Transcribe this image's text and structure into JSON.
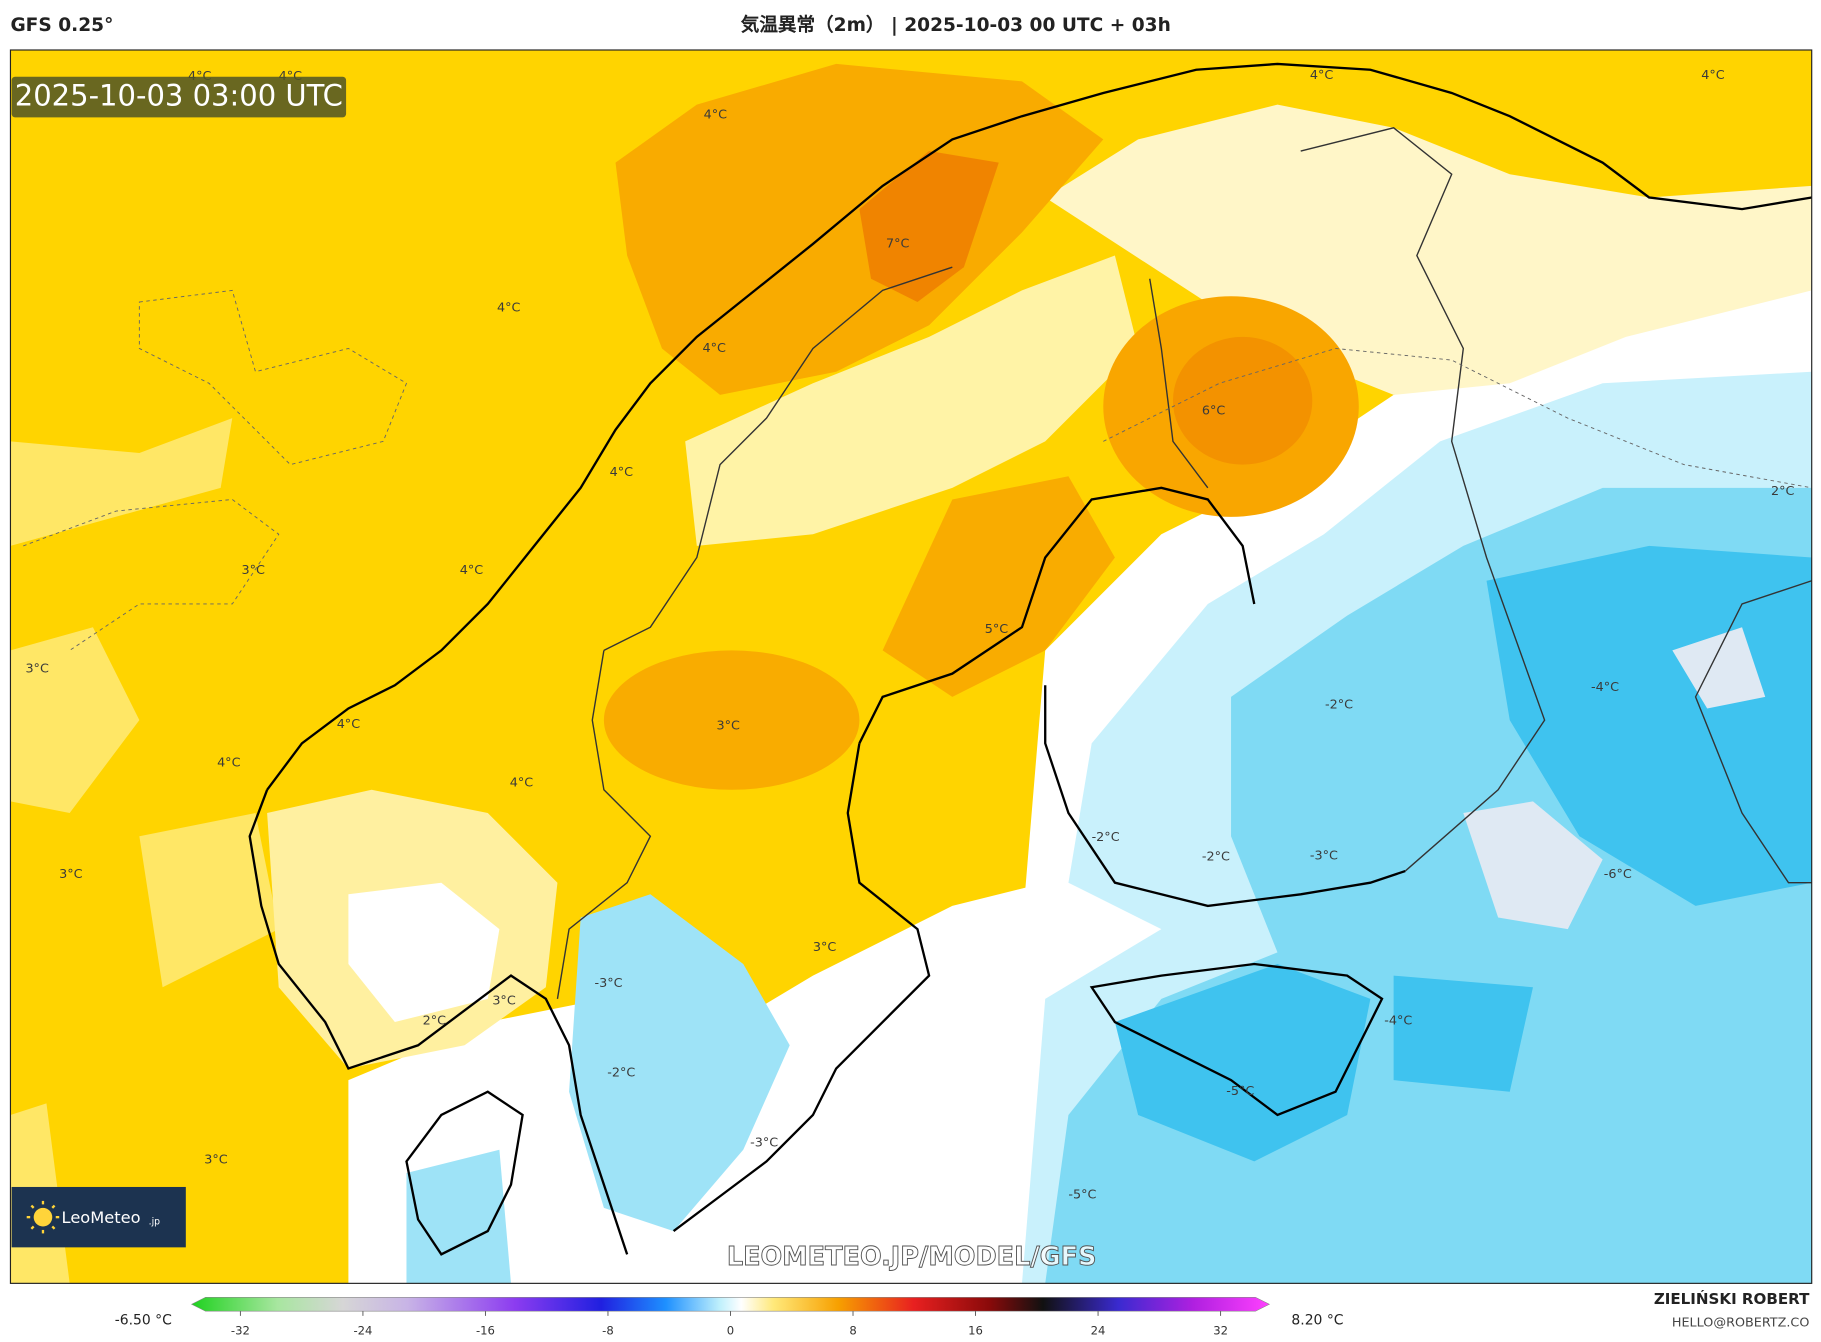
{
  "header": {
    "model": "GFS 0.25°",
    "title": "気温異常（2m） | 2025-10-03 00 UTC + 03h"
  },
  "map": {
    "timestamp": "2025-10-03 03:00 UTC",
    "contour_labels": [
      "4°C",
      "4°C",
      "4°C",
      "7°C",
      "4°C",
      "4°C",
      "4°C",
      "6°C",
      "3°C",
      "4°C",
      "5°C",
      "3°C",
      "3°C",
      "4°C",
      "4°C",
      "4°C",
      "3°C",
      "3°C",
      "-3°C",
      "3°C",
      "2°C",
      "-2°C",
      "-3°C",
      "3°C",
      "4°C",
      "4°C",
      "2°C",
      "-4°C",
      "-2°C",
      "-2°C",
      "-2°C",
      "-3°C",
      "-6°C",
      "-4°C",
      "-5°C",
      "-5°C"
    ],
    "logo": "LeoMeteo",
    "logo_suffix": ".jp",
    "watermark": "LEOMETEO.JP/MODEL/GFS"
  },
  "colorbar": {
    "min_label": "-6.50 °C",
    "max_label": "8.20 °C",
    "ticks": [
      -32,
      -24,
      -16,
      -8,
      0,
      8,
      16,
      24,
      32
    ]
  },
  "credits": {
    "author": "ZIELIŃSKI ROBERT",
    "email": "HELLO@ROBERTZ.CO"
  }
}
